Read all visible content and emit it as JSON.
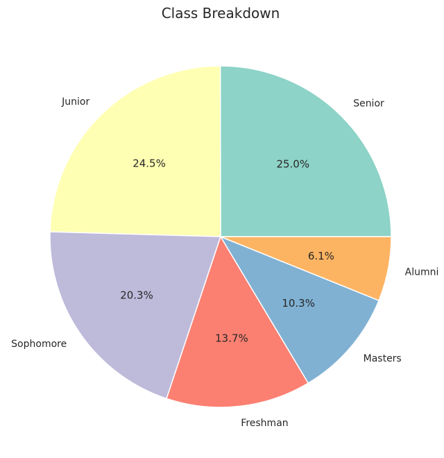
{
  "chart_data": {
    "type": "pie",
    "title": "Class Breakdown",
    "start_angle_deg": 0,
    "direction": "counterclockwise",
    "slices": [
      {
        "label": "Senior",
        "value": 25.0,
        "pct_label": "25.0%",
        "color": "#8dd3c7"
      },
      {
        "label": "Junior",
        "value": 24.5,
        "pct_label": "24.5%",
        "color": "#ffffb3"
      },
      {
        "label": "Sophomore",
        "value": 20.3,
        "pct_label": "20.3%",
        "color": "#bebada"
      },
      {
        "label": "Freshman",
        "value": 13.7,
        "pct_label": "13.7%",
        "color": "#fb8072"
      },
      {
        "label": "Masters",
        "value": 10.3,
        "pct_label": "10.3%",
        "color": "#80b1d3"
      },
      {
        "label": "Alumni",
        "value": 6.1,
        "pct_label": "6.1%",
        "color": "#fdb462"
      }
    ]
  }
}
